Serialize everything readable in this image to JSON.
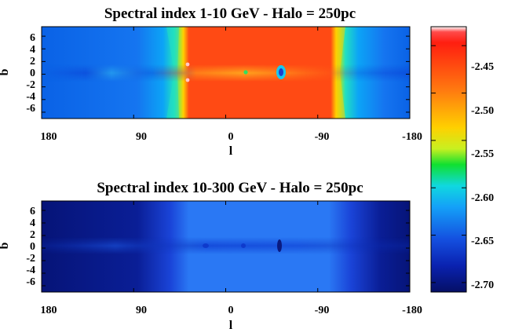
{
  "chart_data": [
    {
      "type": "heatmap",
      "title": "Spectral index 1-10 GeV - Halo = 250pc",
      "xlabel": "l",
      "ylabel": "b",
      "x_ticks": [
        "180",
        "90",
        "0",
        "-90",
        "-180"
      ],
      "y_ticks": [
        "6",
        "4",
        "2",
        "0",
        "-2",
        "-4",
        "-6"
      ],
      "xlim": [
        180,
        -180
      ],
      "ylim": [
        -7,
        7.5
      ],
      "regions": [
        {
          "l_range": [
            180,
            60
          ],
          "value_range": [
            -2.64,
            -2.6
          ],
          "note_value_plane": -2.62
        },
        {
          "l_range": [
            60,
            -105
          ],
          "value_range": [
            -2.47,
            -2.44
          ]
        },
        {
          "l_range": [
            -105,
            -180
          ],
          "value_range": [
            -2.64,
            -2.6
          ]
        }
      ],
      "features": [
        {
          "l": 40,
          "b": 1.5,
          "value": -2.43
        },
        {
          "l": 40,
          "b": -1.5,
          "value": -2.43
        },
        {
          "l": -15,
          "b": 0,
          "value": -2.55
        },
        {
          "l": -50,
          "b": 0,
          "value": -2.63
        }
      ]
    },
    {
      "type": "heatmap",
      "title": "Spectral index 10-300 GeV - Halo = 250pc",
      "xlabel": "l",
      "ylabel": "b",
      "x_ticks": [
        "180",
        "90",
        "0",
        "-90",
        "-180"
      ],
      "y_ticks": [
        "6",
        "4",
        "2",
        "0",
        "-2",
        "-4",
        "-6"
      ],
      "xlim": [
        180,
        -180
      ],
      "ylim": [
        -7,
        7.5
      ],
      "regions": [
        {
          "l_range": [
            180,
            60
          ],
          "value_range": [
            -2.71,
            -2.68
          ]
        },
        {
          "l_range": [
            60,
            -105
          ],
          "value_range": [
            -2.64,
            -2.62
          ]
        },
        {
          "l_range": [
            -105,
            -180
          ],
          "value_range": [
            -2.71,
            -2.68
          ]
        }
      ],
      "features": [
        {
          "l": -50,
          "b": 0,
          "value": -2.69
        }
      ]
    }
  ],
  "colorbar": {
    "ticks": [
      "-2.45",
      "-2.50",
      "-2.55",
      "-2.60",
      "-2.65",
      "-2.70"
    ],
    "vmin": -2.71,
    "vmax": -2.43
  }
}
